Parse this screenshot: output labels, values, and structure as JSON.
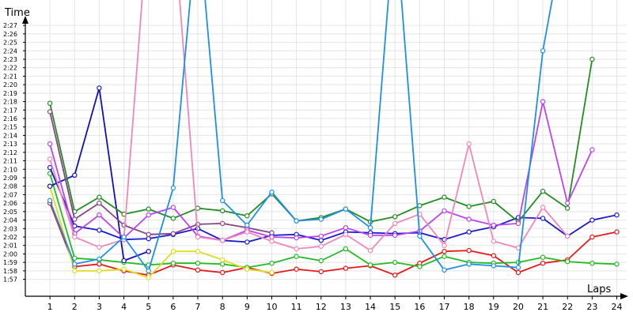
{
  "chart_data": {
    "type": "line",
    "ylabel": "Time",
    "xlabel": "Laps",
    "x": [
      1,
      2,
      3,
      4,
      5,
      6,
      7,
      8,
      9,
      10,
      11,
      12,
      13,
      14,
      15,
      16,
      17,
      18,
      19,
      20,
      21,
      22,
      23,
      24
    ],
    "xlim": [
      0,
      24.4
    ],
    "ylim_seconds": [
      115,
      150
    ],
    "y_unit": "m:ss lap time (values in seconds)",
    "y_tick_labels": [
      "1:57",
      "1:58",
      "1:59",
      "2:00",
      "2:01",
      "2:02",
      "2:03",
      "2:04",
      "2:05",
      "2:06",
      "2:07",
      "2:08",
      "2:09",
      "2:10",
      "2:11",
      "2:12",
      "2:13",
      "2:14",
      "2:15",
      "2:16",
      "2:17",
      "2:18",
      "2:19",
      "2:20",
      "2:21",
      "2:22",
      "2:23",
      "2:24",
      "2:25",
      "2:26",
      "2:27"
    ],
    "y_tick_values": [
      117,
      118,
      119,
      120,
      121,
      122,
      123,
      124,
      125,
      126,
      127,
      128,
      129,
      130,
      131,
      132,
      133,
      134,
      135,
      136,
      137,
      138,
      139,
      140,
      141,
      142,
      143,
      144,
      145,
      146,
      147
    ],
    "grid": true,
    "series": [
      {
        "color": "#e81818",
        "values": [
          126,
          118.5,
          118.8,
          118,
          117.5,
          118.7,
          118.1,
          117.8,
          118.4,
          117.7,
          118.2,
          117.9,
          118.3,
          118.6,
          117.5,
          118.9,
          120.3,
          120.4,
          119.8,
          117.8,
          118.9,
          119.3,
          122,
          122.6
        ]
      },
      {
        "color": "#22bb22",
        "values": [
          129.5,
          119.5,
          119.3,
          119,
          118.7,
          118.9,
          118.9,
          118.8,
          118.4,
          118.9,
          119.7,
          119.2,
          120.6,
          118.7,
          119,
          118.5,
          119.7,
          119,
          118.9,
          119,
          119.6,
          119.1,
          118.9,
          118.8
        ]
      },
      {
        "color": "#dddd22",
        "values": [
          128,
          118,
          118,
          118.2,
          117.2,
          120.3,
          120.3,
          119.3,
          118.2,
          117.8,
          null,
          null,
          null,
          null,
          null,
          null,
          null,
          null,
          null,
          null,
          null,
          null,
          null,
          null
        ]
      },
      {
        "color": "#1111bb",
        "values": [
          128,
          129.3,
          139.6,
          119.2,
          120.3,
          null,
          null,
          null,
          null,
          null,
          null,
          null,
          null,
          null,
          null,
          null,
          null,
          null,
          null,
          null,
          null,
          null,
          null,
          null
        ]
      },
      {
        "color": "#1a1acc",
        "values": [
          130.2,
          123.3,
          122.8,
          121.7,
          121.8,
          122.3,
          123,
          121.6,
          121.4,
          122.2,
          122.3,
          121.6,
          122.6,
          122.5,
          122.4,
          122.5,
          121.7,
          122.6,
          123.2,
          124.3,
          124.2,
          122.1,
          124,
          124.6
        ]
      },
      {
        "color": "#238c23",
        "values": [
          137.8,
          125,
          126.7,
          124.7,
          125.3,
          124.2,
          125.4,
          125.1,
          124.5,
          127.1,
          123.9,
          124.3,
          125.3,
          123.8,
          124.4,
          125.7,
          126.7,
          125.6,
          126.2,
          123.8,
          127.4,
          125.4,
          143,
          null
        ]
      },
      {
        "color": "#884488",
        "values": [
          136.8,
          124.1,
          126,
          123.4,
          122.3,
          122.4,
          123.5,
          123.6,
          123.1,
          122.5,
          null,
          null,
          null,
          null,
          null,
          null,
          null,
          null,
          null,
          null,
          null,
          null,
          null,
          null
        ]
      },
      {
        "color": "#bb44ee",
        "values": [
          133,
          122.4,
          124.6,
          121.9,
          124.6,
          125.5,
          122.1,
          121.6,
          122.8,
          122,
          121.9,
          122.1,
          123.1,
          122.2,
          122.2,
          122.7,
          125.1,
          124.1,
          123.4,
          123.6,
          138,
          126,
          132.3,
          null
        ]
      },
      {
        "color": "#ee88bb",
        "values": [
          131.2,
          122,
          120.8,
          121.7,
          160,
          160,
          122,
          121.6,
          122.6,
          121.5,
          120.6,
          120.9,
          122.3,
          120.4,
          123.6,
          124.7,
          121,
          133,
          121.5,
          120.7,
          125.5,
          122.1,
          null,
          null
        ]
      },
      {
        "color": "#1e90e6",
        "values": [
          126.3,
          118.8,
          119.4,
          122,
          118,
          127.8,
          160,
          126.3,
          123.4,
          127.3,
          123.9,
          124.1,
          125.3,
          123.1,
          160,
          122.1,
          118.1,
          118.8,
          118.6,
          118.4,
          144,
          160,
          null,
          null
        ]
      }
    ]
  }
}
